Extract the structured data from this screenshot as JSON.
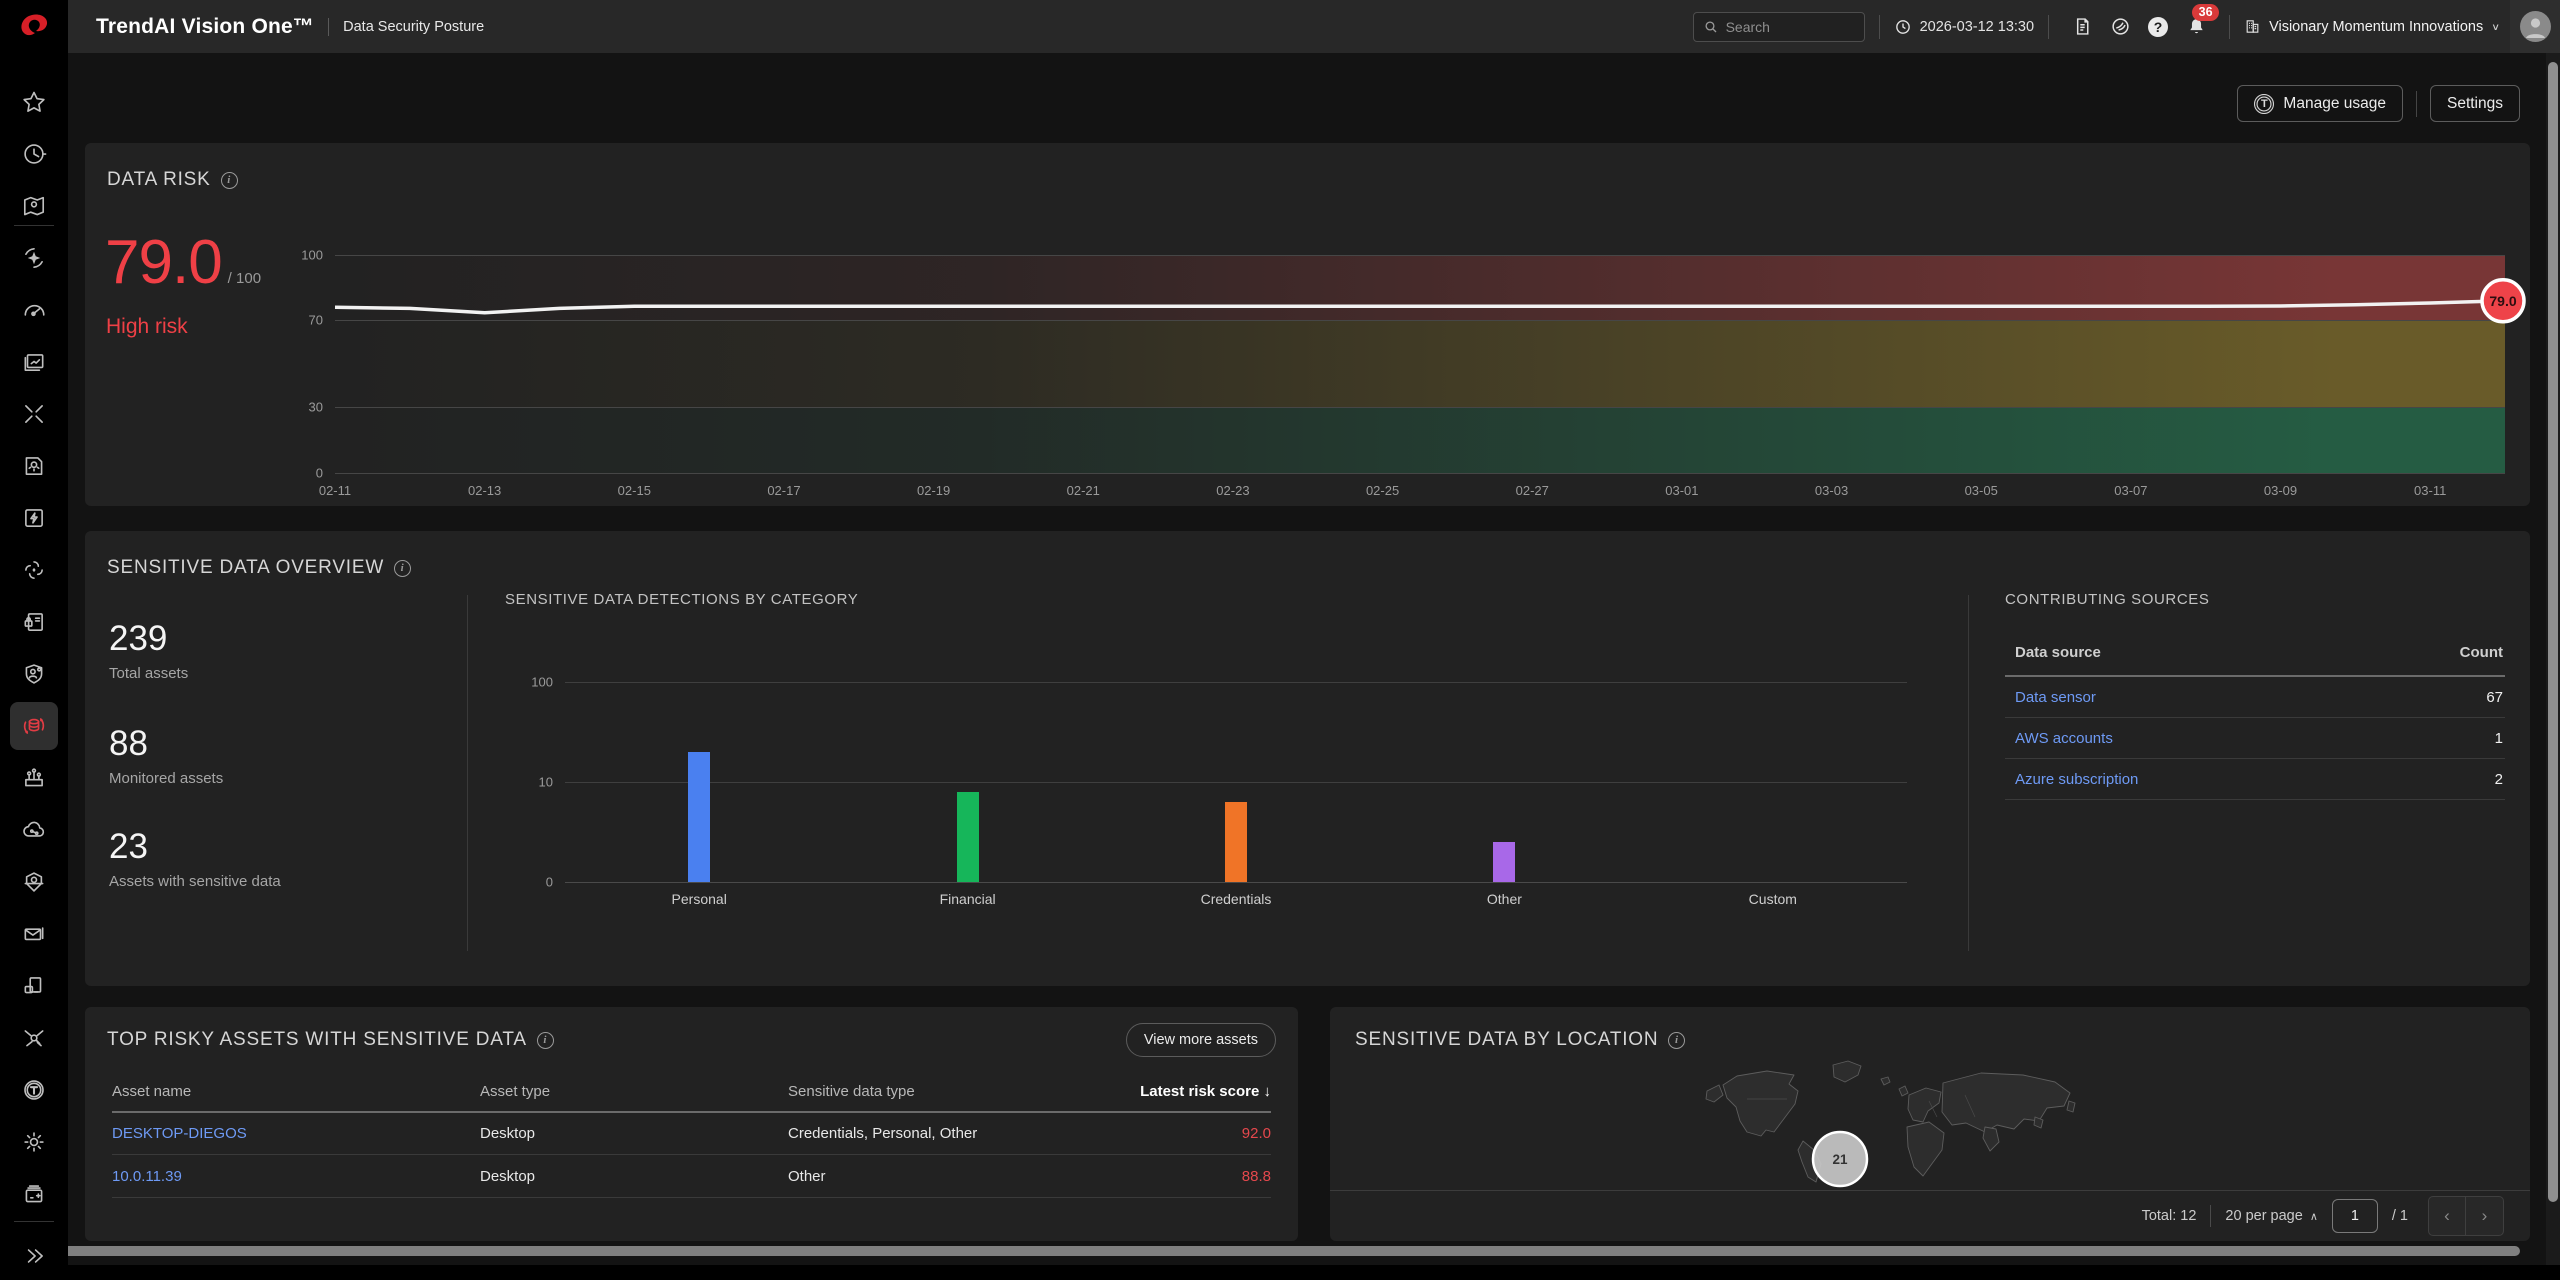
{
  "app": {
    "product": "TrendAI Vision One™",
    "page": "Data Security Posture"
  },
  "topbar": {
    "search_placeholder": "Search",
    "datetime": "2026-03-12 13:30",
    "notification_count": "36",
    "help_glyph": "?",
    "company": "Visionary Momentum Innovations",
    "chevron": "∨"
  },
  "actions": {
    "manage_usage": "Manage usage",
    "manage_usage_icon_glyph": "T",
    "settings": "Settings"
  },
  "data_risk": {
    "title": "DATA RISK",
    "score": "79.0",
    "score_max": "/ 100",
    "level": "High risk"
  },
  "overview": {
    "title": "SENSITIVE DATA OVERVIEW",
    "stats": [
      {
        "value": "239",
        "label": "Total assets"
      },
      {
        "value": "88",
        "label": "Monitored assets"
      },
      {
        "value": "23",
        "label": "Assets with sensitive data"
      }
    ]
  },
  "sources": {
    "title": "CONTRIBUTING SOURCES",
    "col_source": "Data source",
    "col_count": "Count",
    "rows": [
      {
        "name": "Data sensor",
        "count": "67"
      },
      {
        "name": "AWS accounts",
        "count": "1"
      },
      {
        "name": "Azure subscription",
        "count": "2"
      }
    ]
  },
  "top_risky": {
    "title": "TOP RISKY ASSETS WITH SENSITIVE DATA",
    "button": "View more assets",
    "columns": [
      "Asset name",
      "Asset type",
      "Sensitive data type",
      "Latest risk score"
    ],
    "sort_arrow": "↓",
    "rows": [
      {
        "name": "DESKTOP-DIEGOS",
        "type": "Desktop",
        "data_type": "Credentials, Personal, Other",
        "score": "92.0"
      },
      {
        "name": "10.0.11.39",
        "type": "Desktop",
        "data_type": "Other",
        "score": "88.8"
      }
    ]
  },
  "location": {
    "title": "SENSITIVE DATA BY LOCATION",
    "bubble_count": "21",
    "pagination": {
      "total": "Total: 12",
      "per_page": "20 per page",
      "per_page_caret": "∧",
      "page": "1",
      "of": "/ 1",
      "prev": "‹",
      "next": "›"
    }
  },
  "sidebar": {
    "items": [
      {
        "icon": "star-icon"
      },
      {
        "icon": "history-icon"
      },
      {
        "icon": "asset-map-icon"
      },
      {
        "icon": "ai-sparkle-icon"
      },
      {
        "icon": "gauge-icon"
      },
      {
        "icon": "reports-icon"
      },
      {
        "icon": "xdr-icon"
      },
      {
        "icon": "insights-icon"
      },
      {
        "icon": "automation-icon"
      },
      {
        "icon": "integrations-icon"
      },
      {
        "icon": "identity-card-icon"
      },
      {
        "icon": "account-shield-icon"
      },
      {
        "icon": "data-security-icon",
        "active": true
      },
      {
        "icon": "attack-surface-icon"
      },
      {
        "icon": "cloud-security-icon"
      },
      {
        "icon": "shield-hex-icon"
      },
      {
        "icon": "email-security-icon"
      },
      {
        "icon": "devices-icon"
      },
      {
        "icon": "network-analysis-icon"
      },
      {
        "icon": "trend-t-icon"
      },
      {
        "icon": "settings-gear-icon"
      },
      {
        "icon": "console-icon"
      },
      {
        "icon": "expand-icon"
      }
    ]
  },
  "colors": {
    "accent_red": "#ef4046",
    "table_score_red": "#e5484d",
    "link_blue": "#6e9af5",
    "badge_fill": "#ee4349",
    "band_high": "rgba(190,70,70,0.55)",
    "band_medium": "rgba(175,148,48,0.5)",
    "band_low": "rgba(40,150,100,0.5)",
    "bar_personal": "#4a80f0",
    "bar_financial": "#16b65a",
    "bar_credentials": "#f07427",
    "bar_other": "#a868e8"
  },
  "chart_data": [
    {
      "type": "line",
      "title": "DATA RISK trend (risk score over time)",
      "x_tick_labels": [
        "02-11",
        "02-13",
        "02-15",
        "02-17",
        "02-19",
        "02-21",
        "02-23",
        "02-25",
        "02-27",
        "03-01",
        "03-03",
        "03-05",
        "03-07",
        "03-09",
        "03-11"
      ],
      "x_tick_day_index": [
        0,
        2,
        4,
        6,
        8,
        10,
        12,
        14,
        16,
        18,
        20,
        22,
        24,
        26,
        28
      ],
      "total_days": 30,
      "values": [
        76,
        75.5,
        73.5,
        75.5,
        76.5,
        76.5,
        76.5,
        76.5,
        76.5,
        76.5,
        76.5,
        76.5,
        76.5,
        76.5,
        76.5,
        76.5,
        76.5,
        76.5,
        76.5,
        76.5,
        76.5,
        76.5,
        76.5,
        76.5,
        76.5,
        76.5,
        76.6,
        77.2,
        78,
        79
      ],
      "end_label": "79.0",
      "ylim": [
        0,
        100
      ],
      "yticks": [
        0,
        30,
        70,
        100
      ],
      "risk_bands": [
        {
          "range": [
            70,
            100
          ],
          "label": "high",
          "color": "red"
        },
        {
          "range": [
            30,
            70
          ],
          "label": "medium",
          "color": "yellow"
        },
        {
          "range": [
            0,
            30
          ],
          "label": "low",
          "color": "green"
        }
      ],
      "legend": "none",
      "grid": true
    },
    {
      "type": "bar",
      "title": "SENSITIVE DATA DETECTIONS BY CATEGORY",
      "categories": [
        "Personal",
        "Financial",
        "Credentials",
        "Other",
        "Custom"
      ],
      "values": [
        20,
        9,
        8,
        4,
        0
      ],
      "bar_colors": [
        "#4a80f0",
        "#16b65a",
        "#f07427",
        "#a868e8",
        "#888888"
      ],
      "yticks": [
        0,
        10,
        100
      ],
      "yscale": "symlog (linear 0-10, log 10-100)",
      "xlabel": "",
      "ylabel": "",
      "legend": "none",
      "grid": true
    }
  ]
}
